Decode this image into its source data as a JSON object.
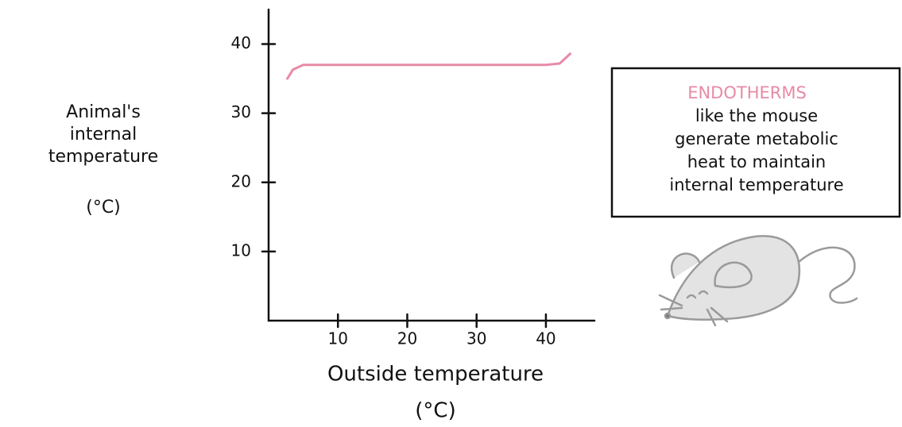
{
  "chart_data": {
    "type": "line",
    "ylabel": [
      "Animal's",
      "internal",
      "temperature",
      "(°C)"
    ],
    "xlabel": [
      "Outside temperature",
      "(°C)"
    ],
    "x": [
      2.7,
      3.5,
      5,
      10,
      20,
      30,
      40,
      42,
      43.5
    ],
    "series": [
      {
        "color": "#e88aa6",
        "values": [
          35,
          36.3,
          37,
          37,
          37,
          37,
          37,
          37.2,
          38.6
        ]
      }
    ],
    "xlim": [
      0,
      47
    ],
    "ylim": [
      0,
      45
    ],
    "xticks": [
      10,
      20,
      30,
      40
    ],
    "yticks": [
      10,
      20,
      30,
      40
    ],
    "grid": false,
    "annotation": {
      "title": "ENDOTHERMS",
      "title_color": "#e88aa6",
      "lines": [
        "like the mouse",
        "generate metabolic",
        "heat to maintain",
        "internal temperature"
      ]
    }
  }
}
